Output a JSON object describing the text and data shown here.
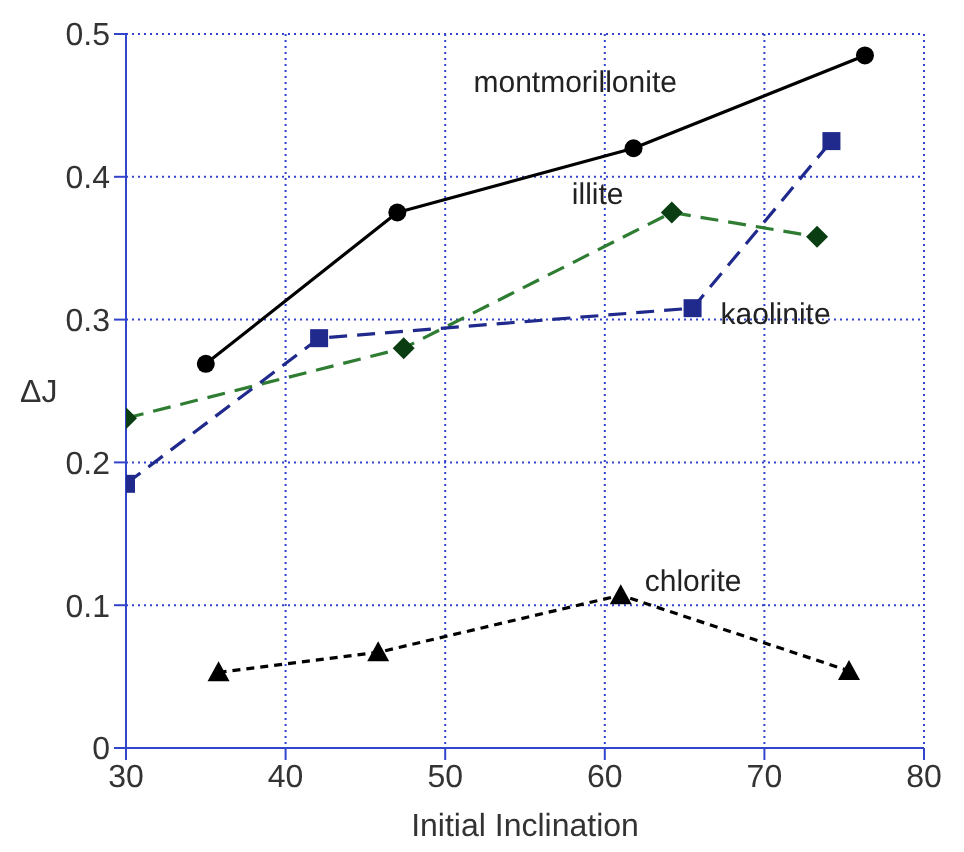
{
  "chart_data": {
    "type": "line",
    "xlabel": "Initial Inclination",
    "ylabel": "ΔJ",
    "xlim": [
      30,
      80
    ],
    "xticks": [
      30,
      40,
      50,
      60,
      70,
      80
    ],
    "ylim": [
      0,
      0.5
    ],
    "yticks": [
      0,
      0.1,
      0.2,
      0.3,
      0.4,
      0.5
    ],
    "grid": true,
    "series": [
      {
        "name": "montmorillonite",
        "color": "#000000",
        "marker": "circle",
        "line_style": "solid",
        "x": [
          35,
          47,
          61.8,
          76.3
        ],
        "values": [
          0.269,
          0.375,
          0.42,
          0.485
        ]
      },
      {
        "name": "illite",
        "color": "#2e7d32",
        "marker": "diamond",
        "line_style": "dashed",
        "x": [
          30,
          47.4,
          64.2,
          73.3
        ],
        "values": [
          0.231,
          0.28,
          0.375,
          0.358
        ]
      },
      {
        "name": "kaolinite",
        "color": "#1f2a8c",
        "marker": "square",
        "line_style": "dashed",
        "x": [
          30,
          42.1,
          65.5,
          74.2
        ],
        "values": [
          0.185,
          0.287,
          0.308,
          0.425
        ]
      },
      {
        "name": "chlorite",
        "color": "#000000",
        "marker": "triangle",
        "line_style": "dotted",
        "x": [
          35.8,
          45.8,
          61,
          75.3
        ],
        "values": [
          0.053,
          0.067,
          0.107,
          0.054
        ]
      }
    ]
  }
}
